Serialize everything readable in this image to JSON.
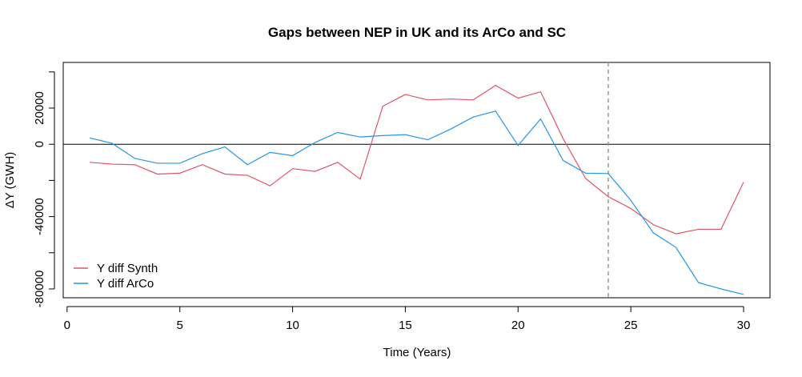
{
  "chart_data": {
    "type": "line",
    "title": "Gaps between NEP in UK and its ArCo and SC",
    "xlabel": "Time (Years)",
    "ylabel": "ΔY (GWH)",
    "xlim": [
      1,
      30
    ],
    "ylim": [
      -80000,
      40000
    ],
    "x_ticks": [
      0,
      5,
      10,
      15,
      20,
      25,
      30
    ],
    "y_ticks": [
      -80000,
      -60000,
      -40000,
      -20000,
      0,
      20000,
      40000
    ],
    "y_tick_labels": [
      "-80000",
      "",
      "-40000",
      "",
      "0",
      "20000",
      ""
    ],
    "x": [
      1,
      2,
      3,
      4,
      5,
      6,
      7,
      8,
      9,
      10,
      11,
      12,
      13,
      14,
      15,
      16,
      17,
      18,
      19,
      20,
      21,
      22,
      23,
      24,
      25,
      26,
      27,
      28,
      29,
      30
    ],
    "series": [
      {
        "name": "Y diff Synth",
        "color": "#DF536B",
        "values": [
          -10000,
          -11000,
          -11300,
          -16500,
          -16000,
          -11300,
          -16500,
          -17200,
          -23000,
          -13500,
          -15000,
          -10000,
          -19300,
          21000,
          27500,
          24500,
          25000,
          24500,
          32500,
          25500,
          29000,
          3000,
          -19000,
          -29000,
          -35500,
          -44500,
          -49500,
          -47000,
          -47000,
          -21000
        ]
      },
      {
        "name": "Y diff ArCo",
        "color": "#2297E6",
        "values": [
          3500,
          500,
          -7800,
          -10500,
          -10500,
          -5200,
          -1500,
          -11300,
          -4500,
          -6300,
          1000,
          6500,
          4000,
          4800,
          5300,
          2500,
          8300,
          15000,
          18300,
          -700,
          14000,
          -9000,
          -16000,
          -16200,
          -31000,
          -49000,
          -57000,
          -76500,
          -80000,
          -83000
        ]
      }
    ],
    "reference_lines": [
      {
        "orientation": "horizontal",
        "value": 0,
        "style": "solid",
        "color": "#000000"
      },
      {
        "orientation": "vertical",
        "value": 24,
        "style": "dashed",
        "color": "#999999"
      }
    ],
    "legend": {
      "position": "bottom-left",
      "entries": [
        "Y diff Synth",
        "Y diff ArCo"
      ]
    },
    "grid": false
  }
}
